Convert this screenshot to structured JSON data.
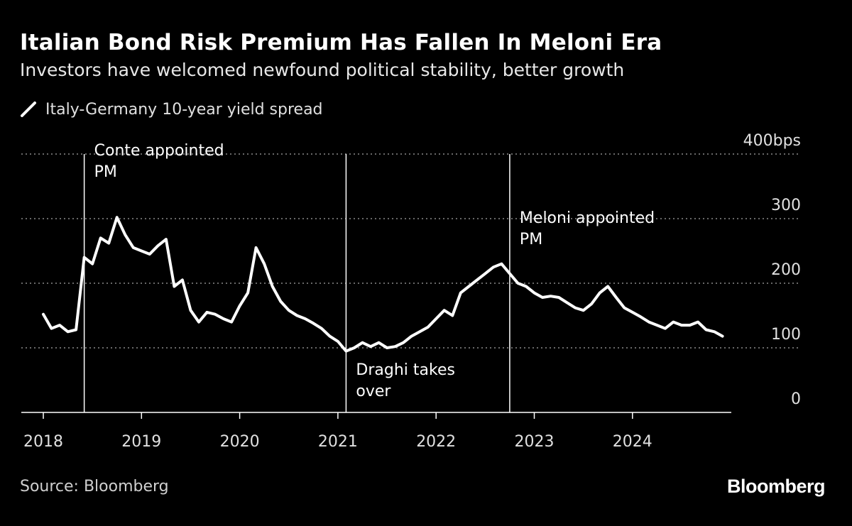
{
  "header": {
    "title": "Italian Bond Risk Premium Has Fallen In Meloni Era",
    "subtitle": "Investors have welcomed newfound political stability, better growth"
  },
  "legend": {
    "label": "Italy-Germany 10-year yield spread",
    "icon": "line-swatch-icon"
  },
  "footer": {
    "source": "Source: Bloomberg",
    "brand": "Bloomberg"
  },
  "colors": {
    "background": "#000000",
    "line": "#ffffff",
    "grid": "#8a8a8a",
    "text": "#ffffff",
    "muted": "#cfcfcf"
  },
  "chart_data": {
    "type": "line",
    "title": "Italian Bond Risk Premium Has Fallen In Meloni Era",
    "subtitle": "Investors have welcomed newfound political stability, better growth",
    "xlabel": "",
    "ylabel": "",
    "xlim": [
      "2018-01",
      "2025-01"
    ],
    "ylim": [
      0,
      400
    ],
    "x_ticks": [
      "2018",
      "2019",
      "2020",
      "2021",
      "2022",
      "2023",
      "2024"
    ],
    "y_ticks": [
      {
        "value": 0,
        "label": "0"
      },
      {
        "value": 100,
        "label": "100"
      },
      {
        "value": 200,
        "label": "200"
      },
      {
        "value": 300,
        "label": "300"
      },
      {
        "value": 400,
        "label": "400bps"
      }
    ],
    "grid": "horizontal dotted",
    "legend_position": "top-left",
    "series": [
      {
        "name": "Italy-Germany 10-year yield spread",
        "x": [
          "2018-01",
          "2018-02",
          "2018-03",
          "2018-04",
          "2018-05",
          "2018-06",
          "2018-07",
          "2018-08",
          "2018-09",
          "2018-10",
          "2018-11",
          "2018-12",
          "2019-01",
          "2019-02",
          "2019-03",
          "2019-04",
          "2019-05",
          "2019-06",
          "2019-07",
          "2019-08",
          "2019-09",
          "2019-10",
          "2019-11",
          "2019-12",
          "2020-01",
          "2020-02",
          "2020-03",
          "2020-04",
          "2020-05",
          "2020-06",
          "2020-07",
          "2020-08",
          "2020-09",
          "2020-10",
          "2020-11",
          "2020-12",
          "2021-01",
          "2021-02",
          "2021-03",
          "2021-04",
          "2021-05",
          "2021-06",
          "2021-07",
          "2021-08",
          "2021-09",
          "2021-10",
          "2021-11",
          "2021-12",
          "2022-01",
          "2022-02",
          "2022-03",
          "2022-04",
          "2022-05",
          "2022-06",
          "2022-07",
          "2022-08",
          "2022-09",
          "2022-10",
          "2022-11",
          "2022-12",
          "2023-01",
          "2023-02",
          "2023-03",
          "2023-04",
          "2023-05",
          "2023-06",
          "2023-07",
          "2023-08",
          "2023-09",
          "2023-10",
          "2023-11",
          "2023-12",
          "2024-01",
          "2024-02",
          "2024-03",
          "2024-04",
          "2024-05",
          "2024-06",
          "2024-07",
          "2024-08",
          "2024-09",
          "2024-10",
          "2024-11",
          "2024-12"
        ],
        "values": [
          152,
          130,
          135,
          125,
          128,
          240,
          230,
          270,
          262,
          302,
          275,
          255,
          250,
          245,
          258,
          268,
          195,
          205,
          158,
          140,
          155,
          152,
          145,
          140,
          165,
          185,
          255,
          230,
          195,
          172,
          158,
          150,
          145,
          138,
          130,
          118,
          110,
          95,
          100,
          108,
          102,
          108,
          100,
          102,
          108,
          118,
          125,
          132,
          145,
          158,
          150,
          185,
          195,
          205,
          215,
          225,
          230,
          215,
          200,
          195,
          185,
          178,
          180,
          178,
          170,
          162,
          158,
          168,
          185,
          195,
          178,
          162,
          155,
          148,
          140,
          135,
          130,
          140,
          135,
          135,
          140,
          128,
          125,
          118
        ]
      }
    ],
    "annotations": [
      {
        "date": "2018-06",
        "label": "Conte appointed PM",
        "lines": [
          "Conte appointed",
          "PM"
        ]
      },
      {
        "date": "2021-02",
        "label": "Draghi takes over",
        "lines": [
          "Draghi takes",
          "over"
        ]
      },
      {
        "date": "2022-10",
        "label": "Meloni appointed PM",
        "lines": [
          "Meloni appointed",
          "PM"
        ]
      }
    ]
  }
}
